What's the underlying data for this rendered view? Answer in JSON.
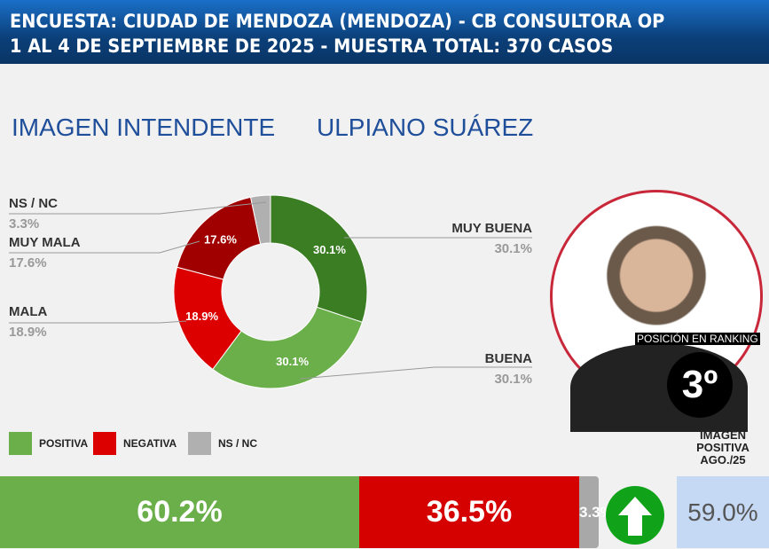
{
  "header": {
    "line1": "ENCUESTA: CIUDAD DE MENDOZA (MENDOZA) - CB CONSULTORA OP",
    "line2": "1 AL 4 DE SEPTIEMBRE DE 2025 - MUESTRA TOTAL: 370 CASOS"
  },
  "titles": {
    "left": "IMAGEN INTENDENTE",
    "right": "ULPIANO SUÁREZ"
  },
  "chart_data": {
    "type": "pie",
    "donut": true,
    "slices": [
      {
        "name": "MUY BUENA",
        "value": 30.1,
        "label": "30.1%",
        "color": "#3b7d23"
      },
      {
        "name": "BUENA",
        "value": 30.1,
        "label": "30.1%",
        "color": "#6aaf4a"
      },
      {
        "name": "MALA",
        "value": 18.9,
        "label": "18.9%",
        "color": "#dd0000"
      },
      {
        "name": "MUY MALA",
        "value": 17.6,
        "label": "17.6%",
        "color": "#a00000"
      },
      {
        "name": "NS / NC",
        "value": 3.3,
        "label": "3.3%",
        "color": "#b0b0b0"
      }
    ]
  },
  "legend": [
    {
      "label": "POSITIVA",
      "color": "#6aaf4a"
    },
    {
      "label": "NEGATIVA",
      "color": "#dd0000"
    },
    {
      "label": "NS / NC",
      "color": "#b0b0b0"
    }
  ],
  "ranking": {
    "label": "POSICIÓN EN RANKING",
    "position": "3º"
  },
  "totals": {
    "positive": "60.2%",
    "negative": "36.5%",
    "nsnc": "3.3%",
    "trend": "up"
  },
  "previous": {
    "label_1": "IMAGEN",
    "label_2": "POSITIVA",
    "label_3": "AGO./25",
    "value": "59.0%"
  }
}
